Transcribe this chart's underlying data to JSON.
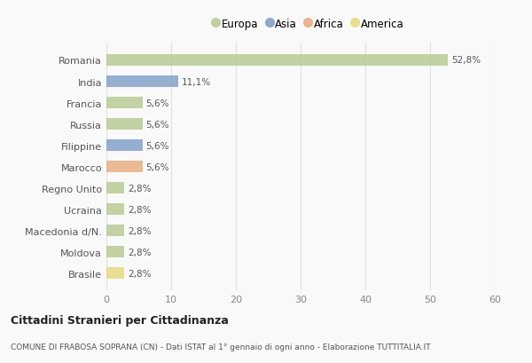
{
  "categories": [
    "Romania",
    "India",
    "Francia",
    "Russia",
    "Filippine",
    "Marocco",
    "Regno Unito",
    "Ucraina",
    "Macedonia d/N.",
    "Moldova",
    "Brasile"
  ],
  "values": [
    52.8,
    11.1,
    5.6,
    5.6,
    5.6,
    5.6,
    2.8,
    2.8,
    2.8,
    2.8,
    2.8
  ],
  "labels": [
    "52,8%",
    "11,1%",
    "5,6%",
    "5,6%",
    "5,6%",
    "5,6%",
    "2,8%",
    "2,8%",
    "2,8%",
    "2,8%",
    "2,8%"
  ],
  "colors": [
    "#b5c98e",
    "#7b9dc7",
    "#b5c98e",
    "#b5c98e",
    "#7b9dc7",
    "#e8a97a",
    "#b5c98e",
    "#b5c98e",
    "#b5c98e",
    "#b5c98e",
    "#e8d87a"
  ],
  "legend_labels": [
    "Europa",
    "Asia",
    "Africa",
    "America"
  ],
  "legend_colors": [
    "#b5c98e",
    "#7b9dc7",
    "#e8a97a",
    "#e8d87a"
  ],
  "xlim": [
    0,
    60
  ],
  "xticks": [
    0,
    10,
    20,
    30,
    40,
    50,
    60
  ],
  "title": "Cittadini Stranieri per Cittadinanza",
  "subtitle": "COMUNE DI FRABOSA SOPRANA (CN) - Dati ISTAT al 1° gennaio di ogni anno - Elaborazione TUTTITALIA.IT",
  "bg_color": "#f9f9f9",
  "grid_color": "#e0e0e0",
  "bar_height": 0.55
}
